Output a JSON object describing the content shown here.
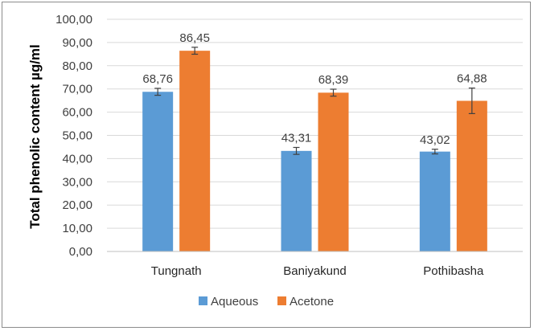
{
  "chart_data": {
    "type": "bar",
    "title": "",
    "xlabel": "",
    "ylabel": "Total phenolic content µg/ml",
    "ylim": [
      0,
      100
    ],
    "ytick_step": 10,
    "ytick_labels": [
      "0,00",
      "10,00",
      "20,00",
      "30,00",
      "40,00",
      "50,00",
      "60,00",
      "70,00",
      "80,00",
      "90,00",
      "100,00"
    ],
    "grid": true,
    "legend_position": "bottom",
    "categories": [
      "Tungnath",
      "Baniyakund",
      "Pothibasha"
    ],
    "series": [
      {
        "name": "Aqueous",
        "color": "#5b9bd5",
        "values": [
          68.76,
          43.31,
          43.02
        ],
        "labels": [
          "68,76",
          "43,31",
          "43,02"
        ],
        "errors": [
          1.5,
          1.5,
          1.0
        ]
      },
      {
        "name": "Acetone",
        "color": "#ed7d31",
        "values": [
          86.45,
          68.39,
          64.88
        ],
        "labels": [
          "86,45",
          "68,39",
          "64,88"
        ],
        "errors": [
          1.5,
          1.5,
          5.5
        ]
      }
    ]
  }
}
